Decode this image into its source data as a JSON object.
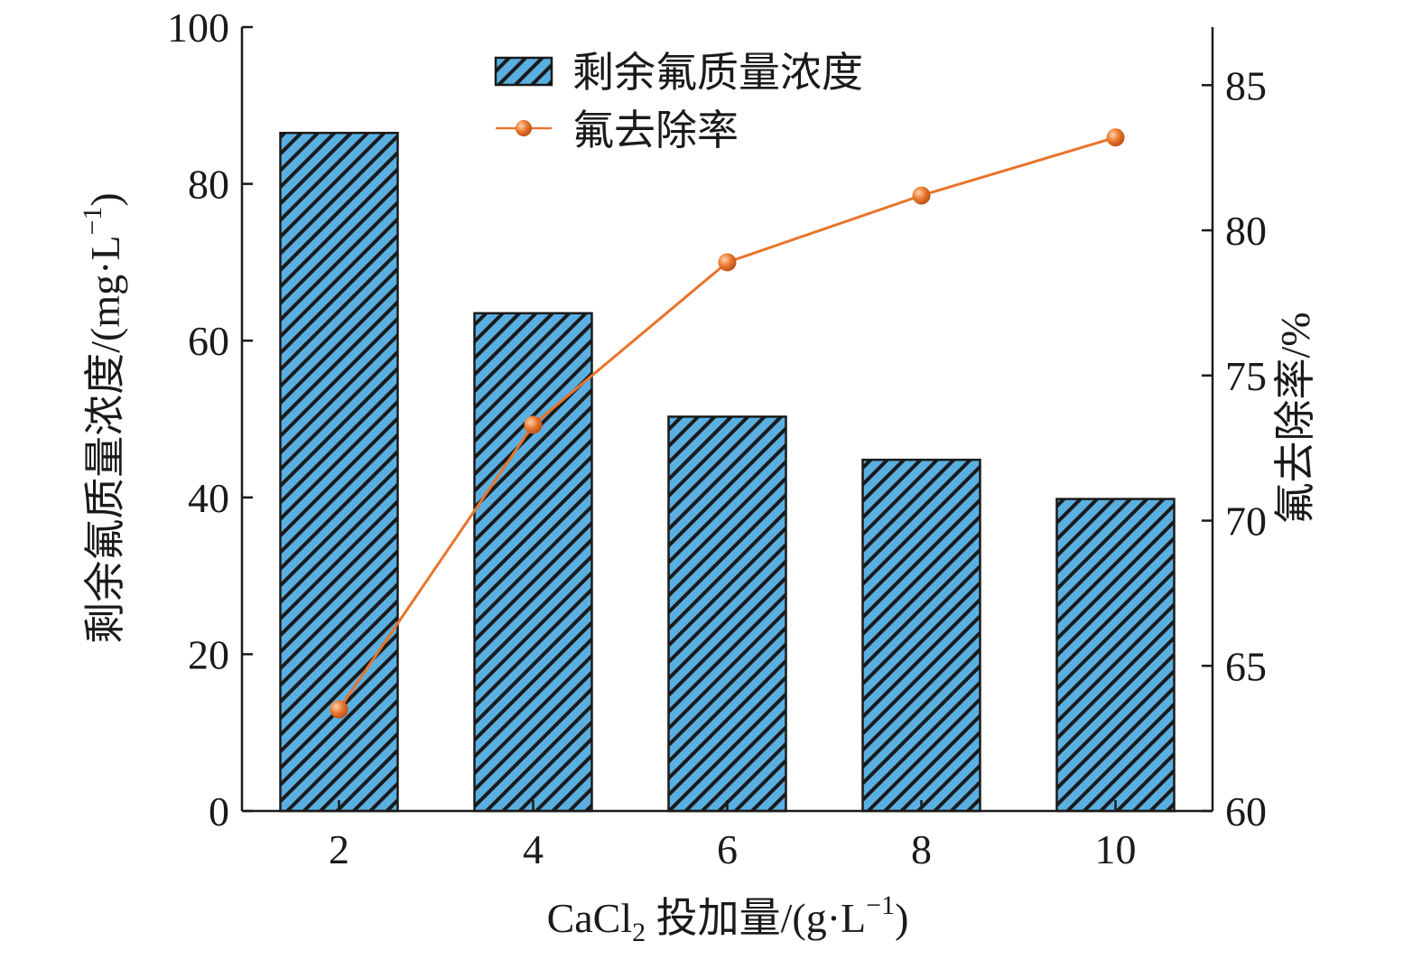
{
  "chart_data": {
    "type": "bar",
    "categories": [
      "2",
      "4",
      "6",
      "8",
      "10"
    ],
    "x_values": [
      2,
      4,
      6,
      8,
      10
    ],
    "series": [
      {
        "name": "剩余氟质量浓度",
        "type": "bar",
        "axis": "left",
        "values": [
          86.5,
          63.5,
          50.3,
          44.8,
          39.8
        ]
      },
      {
        "name": "氟去除率",
        "type": "line",
        "axis": "right",
        "values": [
          63.5,
          73.3,
          78.9,
          81.2,
          83.2
        ]
      }
    ],
    "xlabel": {
      "main": "CaCl",
      "sub": "2",
      "rest": " 投加量/(g·L",
      "sup": "−1",
      "end": ")"
    },
    "ylabel_left": {
      "main": "剩余氟质量浓度/(mg·L",
      "sup": "−1",
      "end": ")"
    },
    "ylabel_right": "氟去除率/%",
    "y_left_lim": [
      0,
      100
    ],
    "y_left_ticks": [
      "0",
      "20",
      "40",
      "60",
      "80",
      "100"
    ],
    "y_right_lim": [
      60,
      87
    ],
    "y_right_ticks": [
      "60",
      "65",
      "70",
      "75",
      "80",
      "85"
    ],
    "x_ticks": [
      "2",
      "4",
      "6",
      "8",
      "10"
    ],
    "legend_position": "top-center",
    "grid": false,
    "colors": {
      "bar_fill": "#5aafe0",
      "bar_hatch": "#1a1a1a",
      "line": "#e8742c",
      "marker": "#e8742c",
      "axis": "#1a1a1a"
    }
  }
}
